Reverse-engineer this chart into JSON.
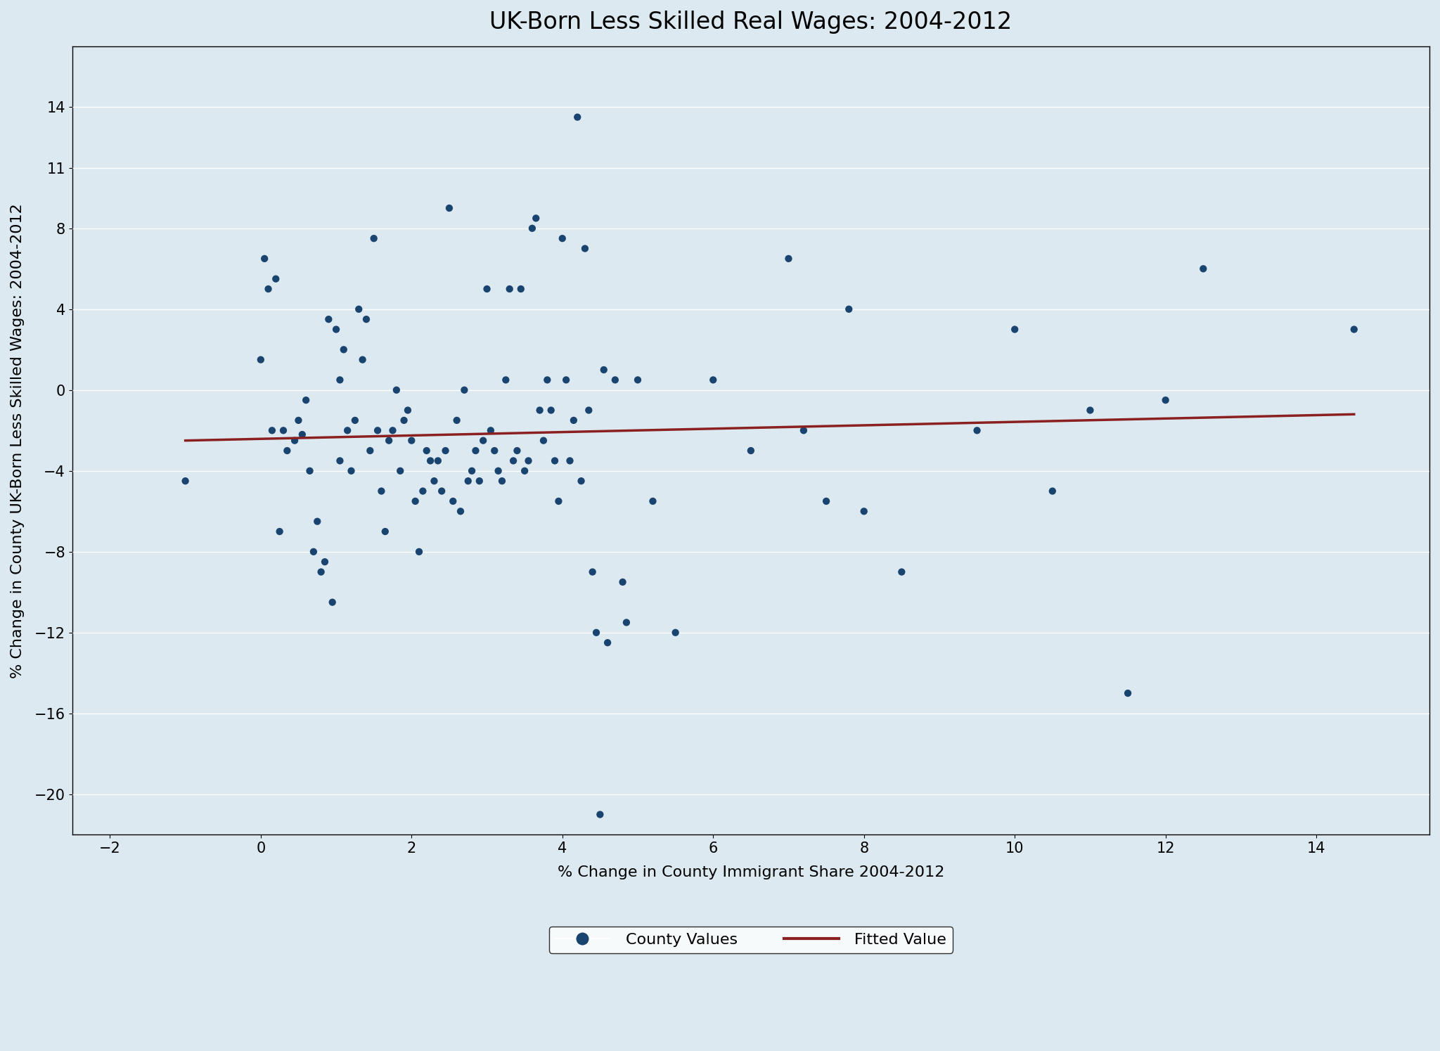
{
  "title": "UK-Born Less Skilled Real Wages: 2004-2012",
  "xlabel": "% Change in County Immigrant Share 2004-2012",
  "ylabel": "% Change in County UK-Born Less Skilled Wages: 2004-2012",
  "xlim": [
    -2.5,
    15.5
  ],
  "ylim": [
    -22,
    17
  ],
  "xticks": [
    -2,
    0,
    2,
    4,
    6,
    8,
    10,
    12,
    14
  ],
  "yticks": [
    -20,
    -16,
    -12,
    -8,
    -4,
    0,
    4,
    8,
    11,
    14
  ],
  "background_color": "#dce9f0",
  "plot_bg_color": "#dce9f0",
  "dot_color": "#1a4470",
  "line_color": "#8b2020",
  "dot_size": 55,
  "fit_x": [
    -1.0,
    14.5
  ],
  "fit_y": [
    -2.5,
    -1.2
  ],
  "scatter_x": [
    -1.0,
    0.0,
    0.1,
    0.2,
    0.3,
    0.35,
    0.45,
    0.5,
    0.55,
    0.6,
    0.7,
    0.8,
    0.9,
    1.0,
    1.05,
    1.1,
    1.2,
    1.3,
    1.4,
    1.5,
    1.55,
    1.6,
    1.7,
    1.8,
    1.9,
    2.0,
    2.1,
    2.2,
    2.25,
    2.3,
    2.4,
    2.5,
    2.6,
    2.7,
    2.8,
    2.9,
    3.0,
    3.1,
    3.15,
    3.2,
    3.3,
    3.4,
    3.5,
    3.55,
    3.6,
    3.7,
    3.8,
    3.9,
    4.0,
    4.1,
    4.2,
    4.3,
    4.4,
    4.45,
    4.5,
    4.6,
    4.7,
    4.8,
    4.85,
    5.0,
    5.2,
    5.5,
    6.0,
    6.5,
    7.0,
    7.2,
    7.5,
    7.8,
    8.0,
    8.5,
    9.5,
    10.0,
    10.5,
    11.0,
    11.5,
    12.0,
    12.5,
    14.5,
    0.05,
    0.15,
    0.25,
    0.65,
    0.75,
    0.85,
    0.95,
    1.05,
    1.15,
    1.25,
    1.35,
    1.45,
    1.65,
    1.75,
    1.85,
    1.95,
    2.05,
    2.15,
    2.35,
    2.45,
    2.55,
    2.65,
    2.75,
    2.85,
    2.95,
    3.05,
    3.25,
    3.35,
    3.45,
    3.65,
    3.75,
    3.85,
    3.95,
    4.05,
    4.15,
    4.25,
    4.35,
    4.55
  ],
  "scatter_y": [
    -4.5,
    1.5,
    5.0,
    5.5,
    -2.0,
    -3.0,
    -2.5,
    -1.5,
    -2.2,
    -0.5,
    -8.0,
    -9.0,
    3.5,
    3.0,
    0.5,
    2.0,
    -4.0,
    4.0,
    3.5,
    7.5,
    -2.0,
    -5.0,
    -2.5,
    0.0,
    -1.5,
    -2.5,
    -8.0,
    -3.0,
    -3.5,
    -4.5,
    -5.0,
    9.0,
    -1.5,
    0.0,
    -4.0,
    -4.5,
    5.0,
    -3.0,
    -4.0,
    -4.5,
    5.0,
    -3.0,
    -4.0,
    -3.5,
    8.0,
    -1.0,
    0.5,
    -3.5,
    7.5,
    -3.5,
    13.5,
    7.0,
    -9.0,
    -12.0,
    -21.0,
    -12.5,
    0.5,
    -9.5,
    -11.5,
    0.5,
    -5.5,
    -12.0,
    0.5,
    -3.0,
    6.5,
    -2.0,
    -5.5,
    4.0,
    -6.0,
    -9.0,
    -2.0,
    3.0,
    -5.0,
    -1.0,
    -15.0,
    -0.5,
    6.0,
    3.0,
    6.5,
    -2.0,
    -7.0,
    -4.0,
    -6.5,
    -8.5,
    -10.5,
    -3.5,
    -2.0,
    -1.5,
    1.5,
    -3.0,
    -7.0,
    -2.0,
    -4.0,
    -1.0,
    -5.5,
    -5.0,
    -3.5,
    -3.0,
    -5.5,
    -6.0,
    -4.5,
    -3.0,
    -2.5,
    -2.0,
    0.5,
    -3.5,
    5.0,
    8.5,
    -2.5,
    -1.0,
    -5.5,
    0.5,
    -1.5,
    -4.5,
    -1.0,
    1.0
  ],
  "title_fontsize": 24,
  "label_fontsize": 16,
  "tick_fontsize": 15
}
